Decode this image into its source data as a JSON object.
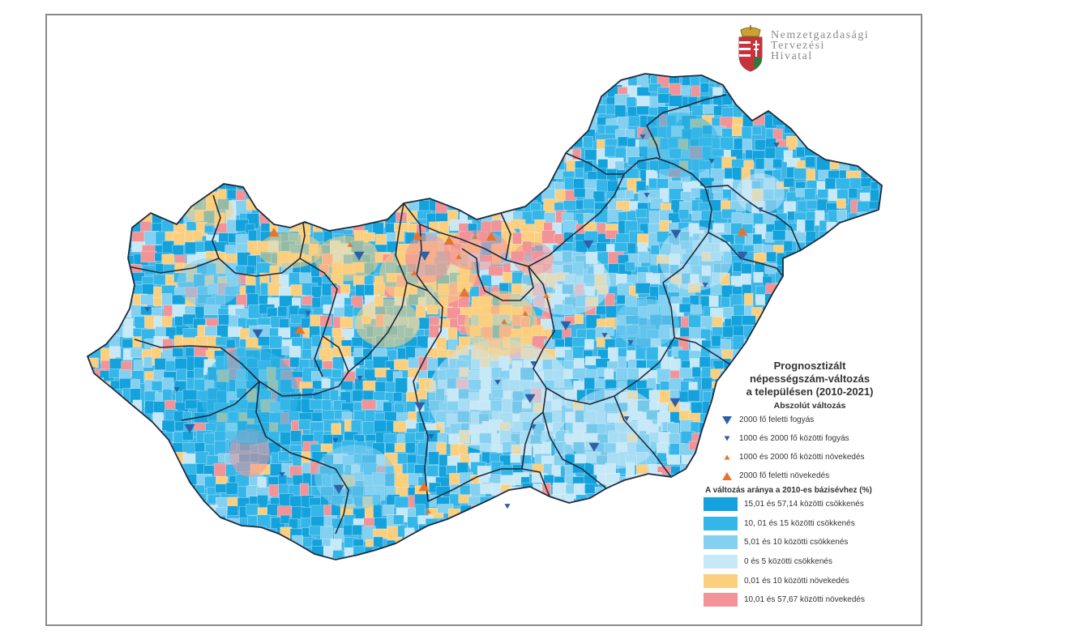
{
  "logo": {
    "line1": "Nemzetgazdasági",
    "line2": "Tervezési",
    "line3": "Hivatal"
  },
  "legend": {
    "title_lines": [
      "Prognosztizált",
      "népességszám-változás",
      "a településen (2010-2021)"
    ],
    "absolute_heading": "Abszolút változás",
    "symbols": [
      {
        "label": "2000 fő feletti fogyás",
        "shape": "triangle-down-large",
        "color": "#2f5fa8"
      },
      {
        "label": "1000 és 2000 fő közötti fogyás",
        "shape": "triangle-down-small",
        "color": "#2f5fa8"
      },
      {
        "label": "1000 és 2000 fő közötti növekedés",
        "shape": "triangle-up-small",
        "color": "#e8742c"
      },
      {
        "label": "2000 fő feletti növekedés",
        "shape": "triangle-up-large",
        "color": "#e8742c"
      }
    ],
    "rate_heading": "A változás aránya a 2010-es bázisévhez (%)",
    "classes": [
      {
        "label": "15,01 és 57,14 közötti csökkenés",
        "color": "#14a2dc"
      },
      {
        "label": "10, 01 és 15 közötti csökkenés",
        "color": "#35b6e8"
      },
      {
        "label": "5,01 és 10 közötti csökkenés",
        "color": "#83d0f0"
      },
      {
        "label": "0 és 5 közötti csökkenés",
        "color": "#c6e8f7"
      },
      {
        "label": "0,01 és 10 közötti növekedés",
        "color": "#fbcf7d"
      },
      {
        "label": "10,01 és 57,67 közötti növekedés",
        "color": "#f29397"
      }
    ]
  },
  "colors": {
    "frame": "#8a8a8a",
    "county_border": "#1f2a3c",
    "land_base": "#3db4e6"
  }
}
